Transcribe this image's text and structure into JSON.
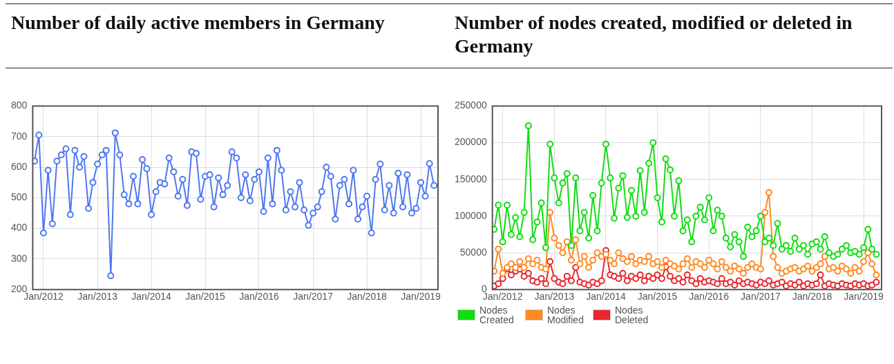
{
  "chart_data": [
    {
      "type": "line",
      "title": "Number of daily active members in Germany",
      "grid": true,
      "marker": "circle",
      "color": "#4d77f2",
      "x": [
        "2011-11",
        "2011-12",
        "2012-01",
        "2012-02",
        "2012-03",
        "2012-04",
        "2012-05",
        "2012-06",
        "2012-07",
        "2012-08",
        "2012-09",
        "2012-10",
        "2012-11",
        "2012-12",
        "2013-01",
        "2013-02",
        "2013-03",
        "2013-04",
        "2013-05",
        "2013-06",
        "2013-07",
        "2013-08",
        "2013-09",
        "2013-10",
        "2013-11",
        "2013-12",
        "2014-01",
        "2014-02",
        "2014-03",
        "2014-04",
        "2014-05",
        "2014-06",
        "2014-07",
        "2014-08",
        "2014-09",
        "2014-10",
        "2014-11",
        "2014-12",
        "2015-01",
        "2015-02",
        "2015-03",
        "2015-04",
        "2015-05",
        "2015-06",
        "2015-07",
        "2015-08",
        "2015-09",
        "2015-10",
        "2015-11",
        "2015-12",
        "2016-01",
        "2016-02",
        "2016-03",
        "2016-04",
        "2016-05",
        "2016-06",
        "2016-07",
        "2016-08",
        "2016-09",
        "2016-10",
        "2016-11",
        "2016-12",
        "2017-01",
        "2017-02",
        "2017-03",
        "2017-04",
        "2017-05",
        "2017-06",
        "2017-07",
        "2017-08",
        "2017-09",
        "2017-10",
        "2017-11",
        "2017-12",
        "2018-01",
        "2018-02",
        "2018-03",
        "2018-04",
        "2018-05",
        "2018-06",
        "2018-07",
        "2018-08",
        "2018-09",
        "2018-10",
        "2018-11",
        "2018-12",
        "2019-01",
        "2019-02",
        "2019-03",
        "2019-04"
      ],
      "values": [
        620,
        705,
        385,
        590,
        415,
        620,
        640,
        660,
        445,
        655,
        600,
        635,
        465,
        550,
        610,
        640,
        655,
        245,
        712,
        640,
        510,
        480,
        570,
        480,
        625,
        595,
        445,
        520,
        550,
        545,
        630,
        585,
        505,
        560,
        475,
        650,
        645,
        495,
        570,
        575,
        470,
        565,
        510,
        540,
        650,
        630,
        500,
        575,
        490,
        560,
        585,
        455,
        630,
        480,
        655,
        590,
        460,
        520,
        470,
        550,
        460,
        410,
        450,
        470,
        520,
        600,
        570,
        430,
        540,
        560,
        480,
        590,
        430,
        470,
        505,
        385,
        560,
        610,
        460,
        540,
        450,
        580,
        470,
        575,
        450,
        465,
        550,
        505,
        612,
        540
      ],
      "xlim": [
        "2011-10-20",
        "2019-04-28"
      ],
      "xticks": [
        {
          "value": "2012-01",
          "label": "Jan/2012"
        },
        {
          "value": "2013-01",
          "label": "Jan/2013"
        },
        {
          "value": "2014-01",
          "label": "Jan/2014"
        },
        {
          "value": "2015-01",
          "label": "Jan/2015"
        },
        {
          "value": "2016-01",
          "label": "Jan/2016"
        },
        {
          "value": "2017-01",
          "label": "Jan/2017"
        },
        {
          "value": "2018-01",
          "label": "Jan/2018"
        },
        {
          "value": "2019-01",
          "label": "Jan/2019"
        }
      ],
      "ylim": [
        200,
        800
      ],
      "yticks": [
        200,
        300,
        400,
        500,
        600,
        700,
        800
      ]
    },
    {
      "type": "line",
      "title": "Number of nodes created, modified or deleted in Germany",
      "grid": true,
      "marker": "circle",
      "legend": "bottom",
      "x": [
        "2011-11",
        "2011-12",
        "2012-01",
        "2012-02",
        "2012-03",
        "2012-04",
        "2012-05",
        "2012-06",
        "2012-07",
        "2012-08",
        "2012-09",
        "2012-10",
        "2012-11",
        "2012-12",
        "2013-01",
        "2013-02",
        "2013-03",
        "2013-04",
        "2013-05",
        "2013-06",
        "2013-07",
        "2013-08",
        "2013-09",
        "2013-10",
        "2013-11",
        "2013-12",
        "2014-01",
        "2014-02",
        "2014-03",
        "2014-04",
        "2014-05",
        "2014-06",
        "2014-07",
        "2014-08",
        "2014-09",
        "2014-10",
        "2014-11",
        "2014-12",
        "2015-01",
        "2015-02",
        "2015-03",
        "2015-04",
        "2015-05",
        "2015-06",
        "2015-07",
        "2015-08",
        "2015-09",
        "2015-10",
        "2015-11",
        "2015-12",
        "2016-01",
        "2016-02",
        "2016-03",
        "2016-04",
        "2016-05",
        "2016-06",
        "2016-07",
        "2016-08",
        "2016-09",
        "2016-10",
        "2016-11",
        "2016-12",
        "2017-01",
        "2017-02",
        "2017-03",
        "2017-04",
        "2017-05",
        "2017-06",
        "2017-07",
        "2017-08",
        "2017-09",
        "2017-10",
        "2017-11",
        "2017-12",
        "2018-01",
        "2018-02",
        "2018-03",
        "2018-04",
        "2018-05",
        "2018-06",
        "2018-07",
        "2018-08",
        "2018-09",
        "2018-10",
        "2018-11",
        "2018-12",
        "2019-01",
        "2019-02",
        "2019-03",
        "2019-04"
      ],
      "series": [
        {
          "name": "Nodes Created",
          "color": "#11dd11",
          "values": [
            82000,
            115000,
            65000,
            115000,
            75000,
            98000,
            72000,
            105000,
            223000,
            68000,
            92000,
            118000,
            57000,
            198000,
            152000,
            118000,
            145000,
            158000,
            60000,
            152000,
            80000,
            105000,
            70000,
            128000,
            80000,
            145000,
            198000,
            152000,
            97000,
            138000,
            155000,
            98000,
            135000,
            100000,
            162000,
            105000,
            172000,
            200000,
            125000,
            92000,
            178000,
            163000,
            100000,
            148000,
            80000,
            95000,
            65000,
            100000,
            112000,
            95000,
            125000,
            80000,
            108000,
            100000,
            70000,
            58000,
            75000,
            65000,
            45000,
            85000,
            72000,
            80000,
            100000,
            65000,
            70000,
            60000,
            90000,
            55000,
            60000,
            52000,
            70000,
            55000,
            60000,
            48000,
            62000,
            65000,
            55000,
            72000,
            50000,
            45000,
            48000,
            55000,
            60000,
            50000,
            52000,
            48000,
            57000,
            82000,
            55000,
            48000
          ]
        },
        {
          "name": "Nodes Modified",
          "color": "#ff8a22",
          "values": [
            25000,
            55000,
            22000,
            30000,
            35000,
            30000,
            38000,
            30000,
            42000,
            35000,
            40000,
            30000,
            28000,
            105000,
            70000,
            60000,
            50000,
            65000,
            40000,
            68000,
            35000,
            45000,
            30000,
            40000,
            50000,
            45000,
            48000,
            40000,
            35000,
            50000,
            42000,
            38000,
            45000,
            35000,
            40000,
            38000,
            45000,
            35000,
            38000,
            30000,
            40000,
            35000,
            32000,
            28000,
            35000,
            42000,
            30000,
            38000,
            35000,
            30000,
            40000,
            35000,
            28000,
            38000,
            30000,
            25000,
            32000,
            28000,
            22000,
            30000,
            35000,
            30000,
            28000,
            105000,
            132000,
            45000,
            30000,
            22000,
            25000,
            28000,
            30000,
            25000,
            28000,
            32000,
            25000,
            30000,
            35000,
            45000,
            28000,
            30000,
            25000,
            32000,
            28000,
            22000,
            30000,
            25000,
            38000,
            50000,
            35000,
            20000
          ]
        },
        {
          "name": "Nodes Deleted",
          "color": "#e8262b",
          "values": [
            5000,
            8000,
            15000,
            28000,
            20000,
            25000,
            28000,
            18000,
            22000,
            12000,
            10000,
            15000,
            8000,
            38000,
            15000,
            10000,
            8000,
            18000,
            12000,
            30000,
            10000,
            8000,
            6000,
            10000,
            8000,
            12000,
            53000,
            20000,
            18000,
            15000,
            22000,
            12000,
            18000,
            15000,
            20000,
            12000,
            18000,
            15000,
            20000,
            15000,
            31000,
            18000,
            12000,
            15000,
            10000,
            20000,
            12000,
            8000,
            15000,
            10000,
            12000,
            10000,
            8000,
            15000,
            8000,
            10000,
            6000,
            12000,
            8000,
            10000,
            8000,
            6000,
            10000,
            8000,
            12000,
            6000,
            8000,
            10000,
            5000,
            8000,
            6000,
            10000,
            5000,
            8000,
            6000,
            8000,
            20000,
            5000,
            8000,
            6000,
            5000,
            8000,
            6000,
            5000,
            8000,
            6000,
            8000,
            5000,
            6000,
            10000
          ]
        }
      ],
      "xlim": [
        "2011-10-20",
        "2019-05-08"
      ],
      "xticks": [
        {
          "value": "2012-01",
          "label": "Jan/2012"
        },
        {
          "value": "2013-01",
          "label": "Jan/2013"
        },
        {
          "value": "2014-01",
          "label": "Jan/2014"
        },
        {
          "value": "2015-01",
          "label": "Jan/2015"
        },
        {
          "value": "2016-01",
          "label": "Jan/2016"
        },
        {
          "value": "2017-01",
          "label": "Jan/2017"
        },
        {
          "value": "2018-01",
          "label": "Jan/2018"
        },
        {
          "value": "2019-01",
          "label": "Jan/2019"
        }
      ],
      "ylim": [
        0,
        250000
      ],
      "yticks": [
        0,
        50000,
        100000,
        150000,
        200000,
        250000
      ]
    }
  ]
}
